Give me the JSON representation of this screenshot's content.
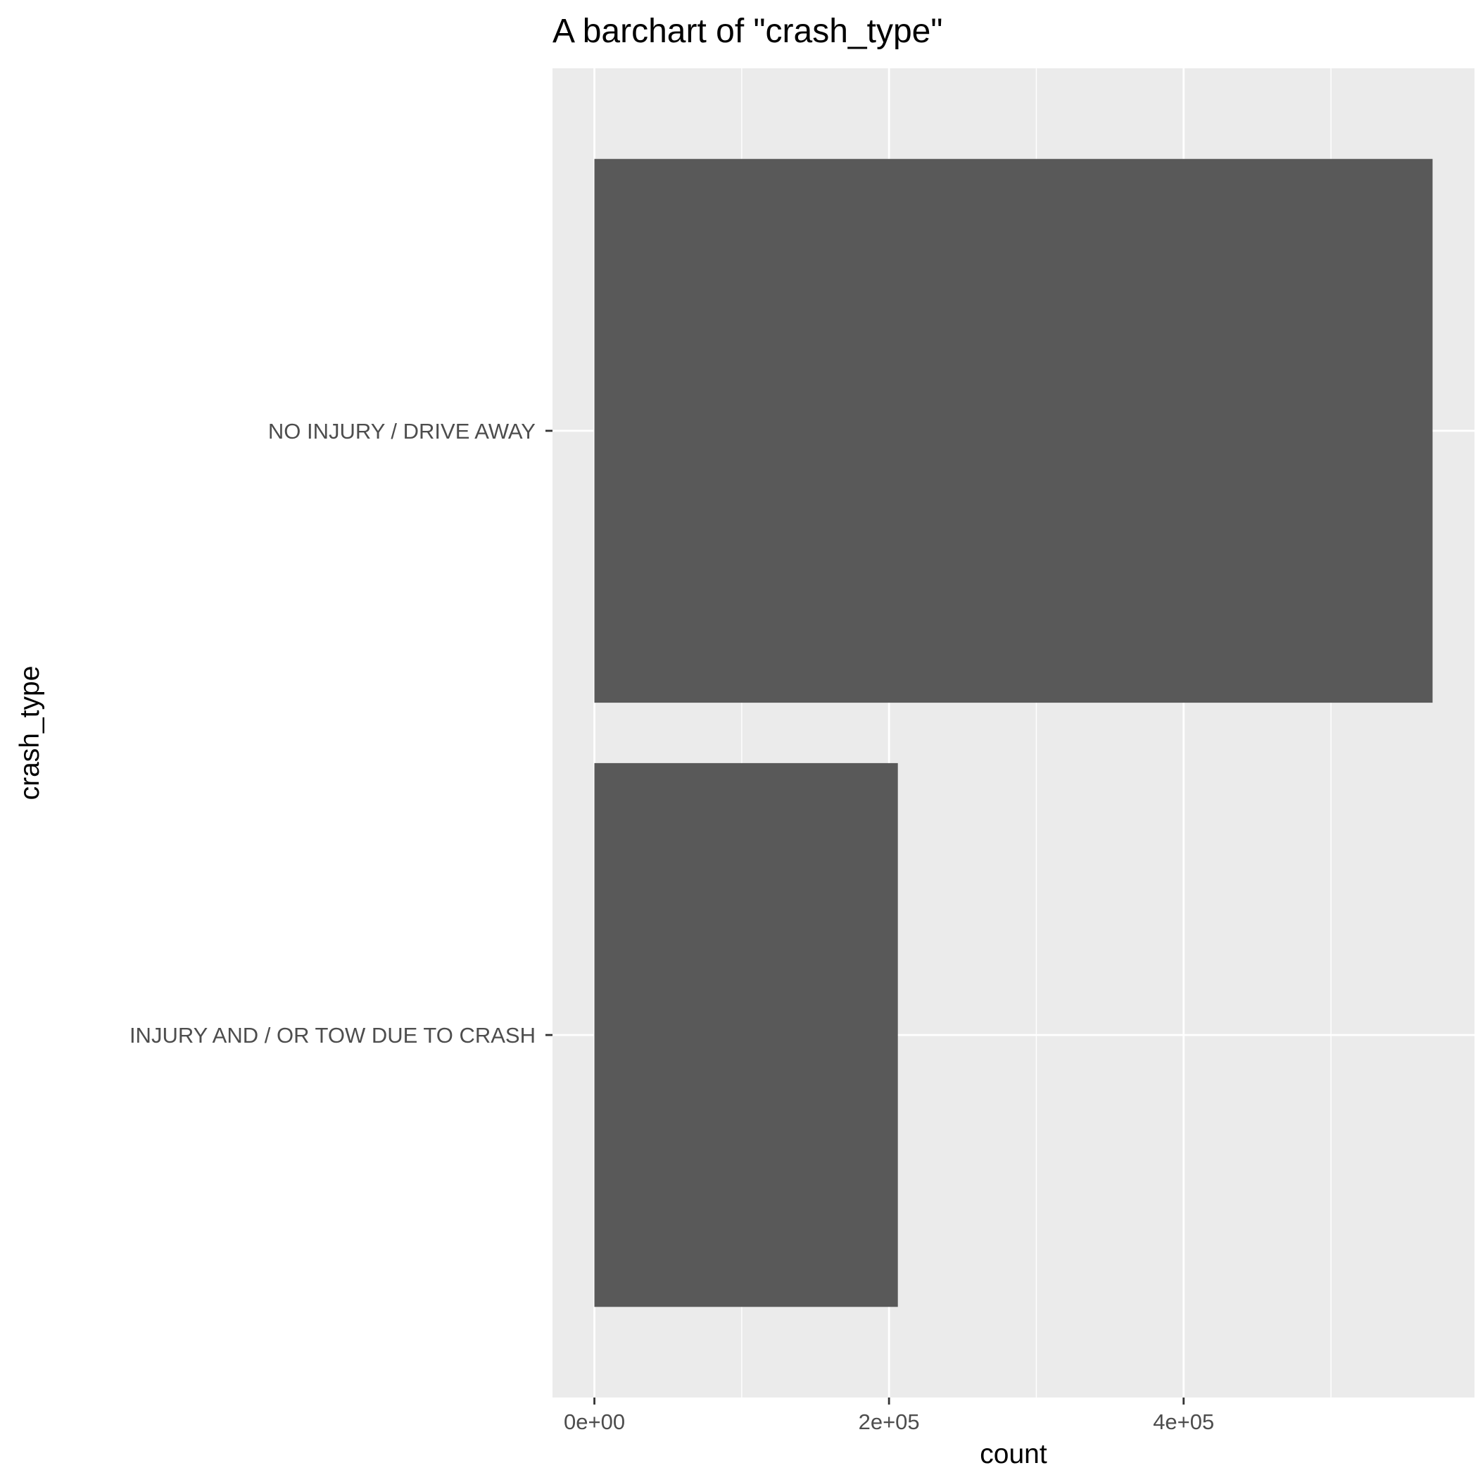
{
  "chart_data": {
    "type": "bar",
    "orientation": "horizontal",
    "title": "A barchart of \"crash_type\"",
    "xlabel": "count",
    "ylabel": "crash_type",
    "categories": [
      "NO INJURY / DRIVE AWAY",
      "INJURY AND / OR TOW DUE TO CRASH"
    ],
    "values": [
      569000,
      206000
    ],
    "xlim": [
      -28450,
      597450
    ],
    "x_ticks": [
      0,
      200000,
      400000
    ],
    "x_tick_labels": [
      "0e+00",
      "2e+05",
      "4e+05"
    ],
    "x_minor_ticks": [
      100000,
      300000,
      500000
    ],
    "grid": true,
    "legend": "none",
    "colors": {
      "bar": "#595959",
      "panel": "#ebebeb",
      "grid": "#ffffff",
      "text": "#4d4d4d",
      "title": "#000000"
    }
  }
}
